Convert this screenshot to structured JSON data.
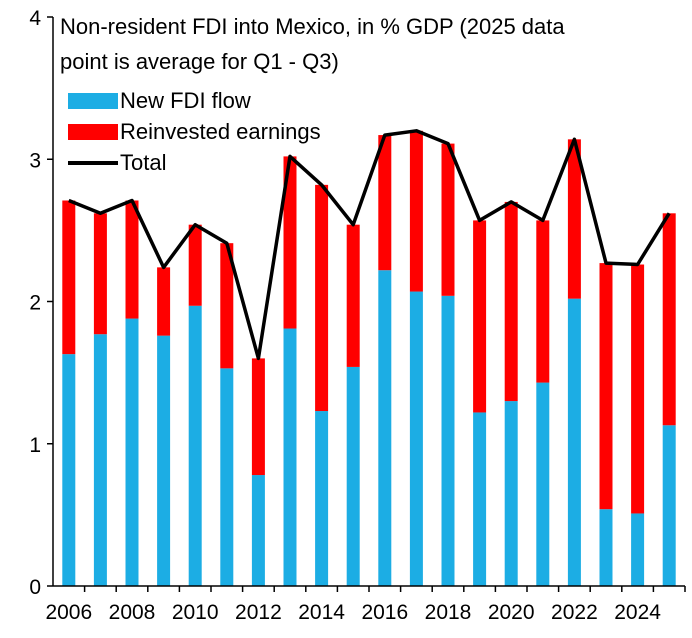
{
  "colors": {
    "new_fdi": "#1CADE4",
    "reinvested": "#FF0000",
    "total": "#000000",
    "axis": "#000000"
  },
  "chart_data": {
    "type": "bar",
    "stacked": true,
    "title_lines": [
      "Non-resident FDI into Mexico, in % GDP (2025 data",
      "point is average for Q1 - Q3)"
    ],
    "xlabel": "",
    "ylabel": "",
    "ylim": [
      0,
      4
    ],
    "yticks": [
      0,
      1,
      2,
      3,
      4
    ],
    "xticks": [
      "2006",
      "2008",
      "2010",
      "2012",
      "2014",
      "2016",
      "2018",
      "2020",
      "2022",
      "2024"
    ],
    "categories": [
      "2006",
      "2007",
      "2008",
      "2009",
      "2010",
      "2011",
      "2012",
      "2013",
      "2014",
      "2015",
      "2016",
      "2017",
      "2018",
      "2019",
      "2020",
      "2021",
      "2022",
      "2023",
      "2024",
      "2025"
    ],
    "series": [
      {
        "name": "New FDI flow",
        "type": "bar",
        "values": [
          1.63,
          1.77,
          1.88,
          1.76,
          1.97,
          1.53,
          0.78,
          1.81,
          1.23,
          1.54,
          2.22,
          2.07,
          2.04,
          1.22,
          1.3,
          1.43,
          2.02,
          0.54,
          0.51,
          1.13
        ]
      },
      {
        "name": "Reinvested earnings",
        "type": "bar",
        "values": [
          1.08,
          0.85,
          0.83,
          0.48,
          0.57,
          0.88,
          0.82,
          1.21,
          1.59,
          1.0,
          0.95,
          1.13,
          1.07,
          1.35,
          1.4,
          1.14,
          1.12,
          1.73,
          1.75,
          1.49
        ]
      },
      {
        "name": "Total",
        "type": "line",
        "values": [
          2.71,
          2.62,
          2.71,
          2.24,
          2.54,
          2.41,
          1.6,
          3.02,
          2.82,
          2.54,
          3.17,
          3.2,
          3.11,
          2.57,
          2.7,
          2.57,
          3.14,
          2.27,
          2.26,
          2.62
        ]
      }
    ],
    "legend": [
      "New FDI flow",
      "Reinvested earnings",
      "Total"
    ],
    "legend_position": "top-left",
    "grid": false
  }
}
